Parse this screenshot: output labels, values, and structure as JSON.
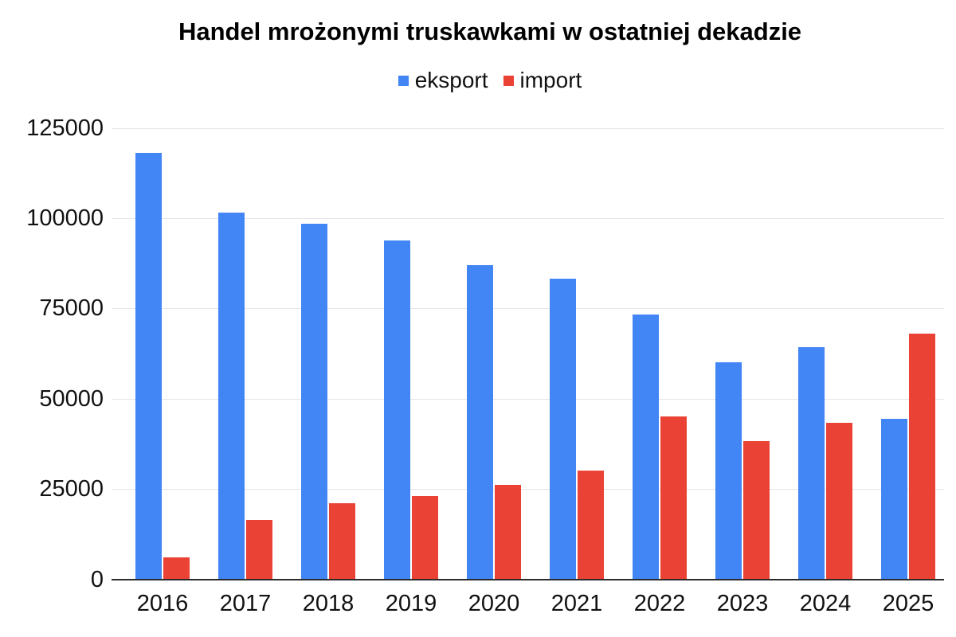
{
  "page": {
    "background": "#ffffff"
  },
  "chart_data": {
    "type": "bar",
    "title": "Handel mrożonymi truskawkami w ostatniej dekadzie",
    "categories": [
      "2016",
      "2017",
      "2018",
      "2019",
      "2020",
      "2021",
      "2022",
      "2023",
      "2024",
      "2025"
    ],
    "series": [
      {
        "name": "eksport",
        "color": "#4285F4",
        "values": [
          118000,
          101500,
          98500,
          93700,
          87000,
          83200,
          73300,
          60000,
          64200,
          44500
        ]
      },
      {
        "name": "import",
        "color": "#EA4335",
        "values": [
          6000,
          16500,
          21000,
          23000,
          26200,
          30100,
          45000,
          38300,
          43300,
          68000
        ]
      }
    ],
    "xlabel": "",
    "ylabel": "",
    "ylim": [
      0,
      125000
    ],
    "ytick_step": 25000,
    "ytick_labels": [
      "0",
      "25000",
      "50000",
      "75000",
      "100000",
      "125000"
    ],
    "grid": true,
    "legend_position": "top-center",
    "gridline_color": "#e6e6e6",
    "axis_line_color": "#2b2b2b",
    "text_color": "#111111"
  }
}
